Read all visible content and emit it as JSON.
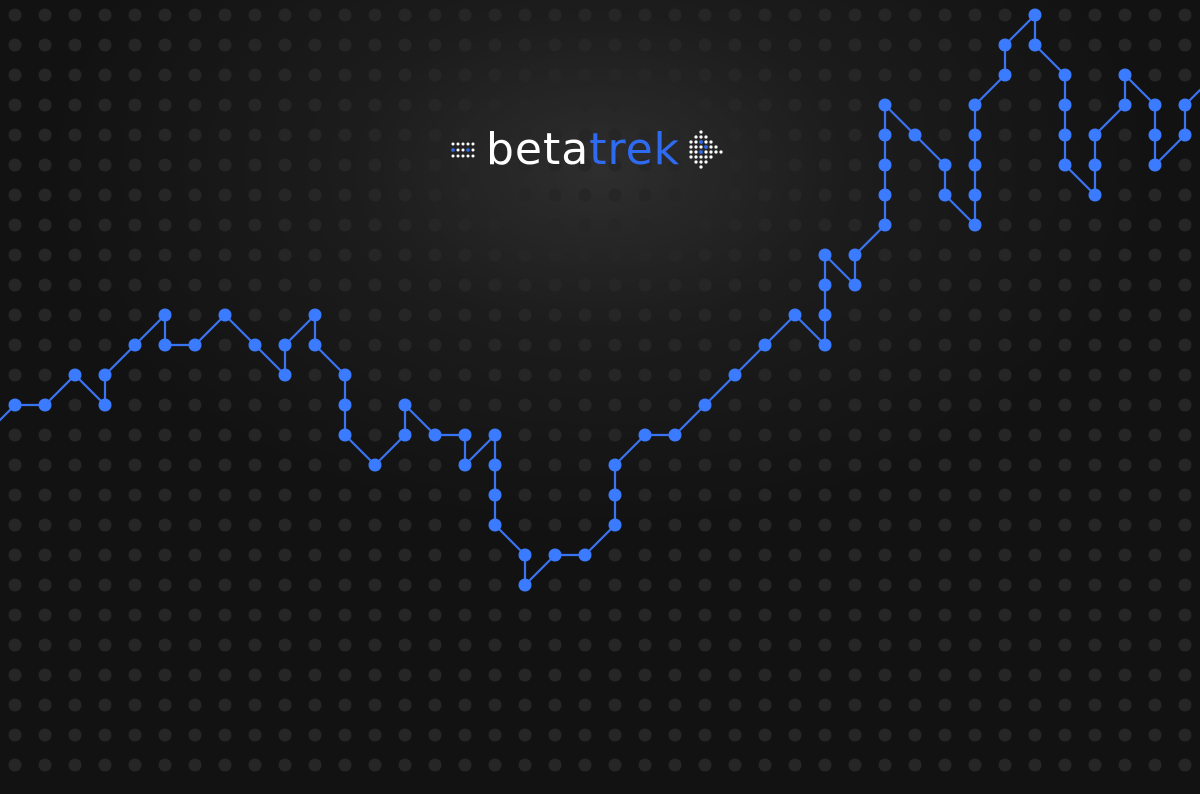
{
  "brand": {
    "name_light": "beta",
    "name_accent": "trek"
  },
  "colors": {
    "accent": "#3b7bff",
    "line": "#3a74f2",
    "logo_accent": "#2f6bf0",
    "logo_white": "#ffffff",
    "grid_dot": "#262626"
  },
  "background": {
    "pattern": "dot-grid",
    "trend_path": [
      [
        0,
        13
      ],
      [
        1,
        13
      ],
      [
        2,
        12
      ],
      [
        3,
        13
      ],
      [
        3,
        12
      ],
      [
        4,
        11
      ],
      [
        5,
        10
      ],
      [
        5,
        11
      ],
      [
        6,
        11
      ],
      [
        7,
        10
      ],
      [
        8,
        11
      ],
      [
        9,
        12
      ],
      [
        9,
        11
      ],
      [
        10,
        10
      ],
      [
        10,
        11
      ],
      [
        11,
        12
      ],
      [
        11,
        13
      ],
      [
        11,
        14
      ],
      [
        12,
        15
      ],
      [
        13,
        14
      ],
      [
        13,
        13
      ],
      [
        14,
        14
      ],
      [
        15,
        14
      ],
      [
        15,
        15
      ],
      [
        16,
        14
      ],
      [
        16,
        15
      ],
      [
        16,
        16
      ],
      [
        16,
        17
      ],
      [
        17,
        18
      ],
      [
        17,
        19
      ],
      [
        18,
        18
      ],
      [
        19,
        18
      ],
      [
        20,
        17
      ],
      [
        20,
        16
      ],
      [
        20,
        15
      ],
      [
        21,
        14
      ],
      [
        22,
        14
      ],
      [
        23,
        13
      ],
      [
        24,
        12
      ],
      [
        25,
        11
      ],
      [
        26,
        10
      ],
      [
        27,
        11
      ],
      [
        27,
        10
      ],
      [
        27,
        9
      ],
      [
        27,
        8
      ],
      [
        28,
        9
      ],
      [
        28,
        8
      ],
      [
        29,
        7
      ],
      [
        29,
        6
      ],
      [
        29,
        5
      ],
      [
        29,
        4
      ],
      [
        29,
        3
      ],
      [
        30,
        4
      ],
      [
        31,
        5
      ],
      [
        31,
        6
      ],
      [
        32,
        7
      ],
      [
        32,
        6
      ],
      [
        32,
        5
      ],
      [
        32,
        4
      ],
      [
        32,
        3
      ],
      [
        33,
        2
      ],
      [
        33,
        1
      ],
      [
        34,
        0
      ],
      [
        34,
        1
      ],
      [
        35,
        2
      ],
      [
        35,
        3
      ],
      [
        35,
        4
      ],
      [
        35,
        5
      ],
      [
        36,
        6
      ],
      [
        36,
        5
      ],
      [
        36,
        4
      ],
      [
        37,
        3
      ],
      [
        37,
        2
      ],
      [
        38,
        3
      ],
      [
        38,
        4
      ],
      [
        38,
        5
      ],
      [
        39,
        4
      ],
      [
        39,
        3
      ],
      [
        40,
        2
      ]
    ]
  }
}
